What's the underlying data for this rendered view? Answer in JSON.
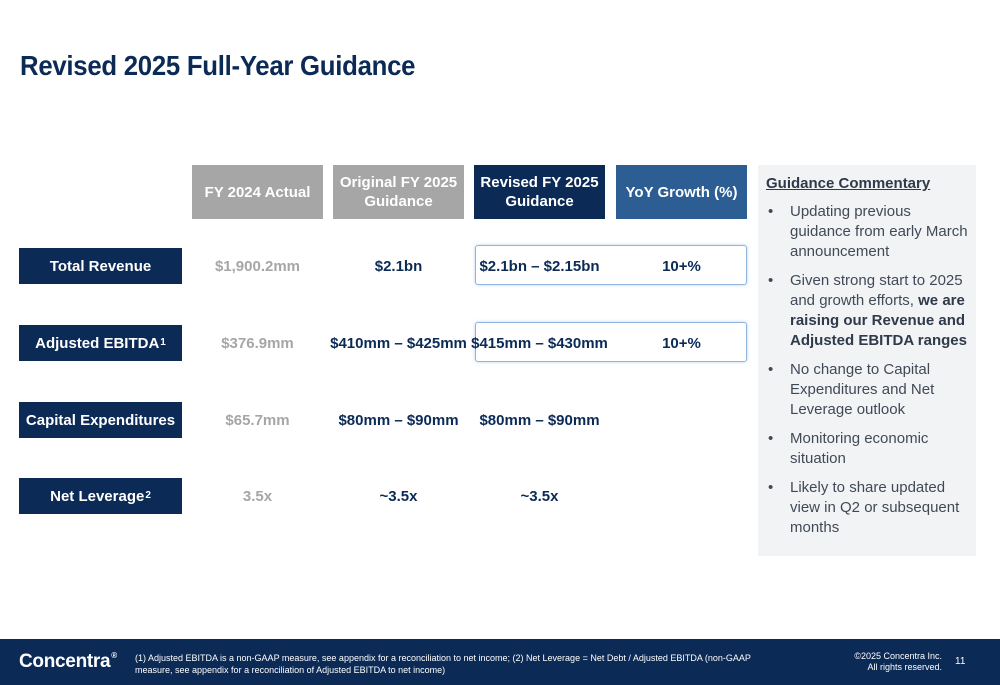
{
  "title": "Revised 2025 Full-Year Guidance",
  "columns": {
    "fy2024": "FY 2024 Actual",
    "original": "Original FY 2025 Guidance",
    "revised": "Revised FY 2025 Guidance",
    "yoy": "YoY Growth (%)"
  },
  "rows": [
    {
      "label": "Total Revenue",
      "footnote": "",
      "fy2024": "$1,900.2mm",
      "original": "$2.1bn",
      "revised": "$2.1bn – $2.15bn",
      "yoy": "10+%"
    },
    {
      "label": "Adjusted EBITDA",
      "footnote": "1",
      "fy2024": "$376.9mm",
      "original": "$410mm – $425mm",
      "revised": "$415mm – $430mm",
      "yoy": "10+%"
    },
    {
      "label": "Capital Expenditures",
      "footnote": "",
      "fy2024": "$65.7mm",
      "original": "$80mm – $90mm",
      "revised": "$80mm – $90mm",
      "yoy": ""
    },
    {
      "label": "Net Leverage",
      "footnote": "2",
      "fy2024": "3.5x",
      "original": "~3.5x",
      "revised": "~3.5x",
      "yoy": ""
    }
  ],
  "commentary": {
    "title": "Guidance Commentary",
    "items": [
      {
        "text": "Updating previous guidance from early March announcement"
      },
      {
        "text_before": "Given strong start to 2025 and growth efforts, ",
        "bold": "we are raising our Revenue and Adjusted EBITDA ranges"
      },
      {
        "text": "No change to Capital Expenditures and Net Leverage outlook"
      },
      {
        "text": "Monitoring economic situation"
      },
      {
        "text": "Likely to share updated view in Q2 or subsequent months"
      }
    ]
  },
  "footer": {
    "logo": "Concentra",
    "logo_mark": "®",
    "footnote": "(1) Adjusted EBITDA is a non-GAAP measure, see appendix for a reconciliation to net income; (2) Net Leverage = Net Debt / Adjusted EBITDA (non-GAAP measure, see appendix for a reconciliation of Adjusted EBITDA to net income)",
    "copyright_line1": "©2025 Concentra Inc.",
    "copyright_line2": "All rights reserved.",
    "page_number": "11"
  }
}
